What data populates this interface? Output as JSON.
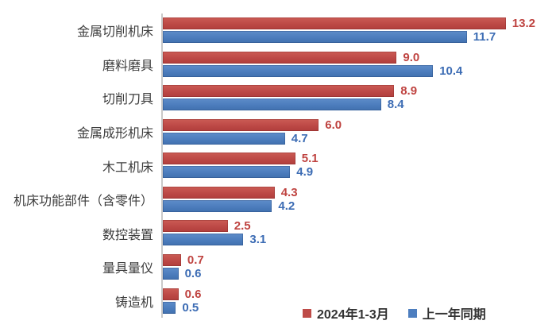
{
  "colors": {
    "series1_fill": "#be4b48",
    "series2_fill": "#4d7ebf",
    "series1_text": "#bf4340",
    "series2_text": "#3c6cb4",
    "axis_line": "#c9c9c9",
    "category_text": "#3d3d3d",
    "background": "#ffffff"
  },
  "chart_data": {
    "type": "bar",
    "orientation": "horizontal",
    "title": "",
    "categories": [
      "金属切削机床",
      "磨料磨具",
      "切削刀具",
      "金属成形机床",
      "木工机床",
      "机床功能部件（含零件）",
      "数控装置",
      "量具量仪",
      "铸造机"
    ],
    "series": [
      {
        "name": "2024年1-3月",
        "color": "#be4b48",
        "values": [
          13.2,
          9.0,
          8.9,
          6.0,
          5.1,
          4.3,
          2.5,
          0.7,
          0.6
        ]
      },
      {
        "name": "上一年同期",
        "color": "#4d7ebf",
        "values": [
          11.7,
          10.4,
          8.4,
          4.7,
          4.9,
          4.2,
          3.1,
          0.6,
          0.5
        ]
      }
    ],
    "xlim": [
      0,
      14
    ],
    "value_labels": true,
    "value_label_decimals": 1,
    "grid": false,
    "legend_position": "bottom"
  }
}
